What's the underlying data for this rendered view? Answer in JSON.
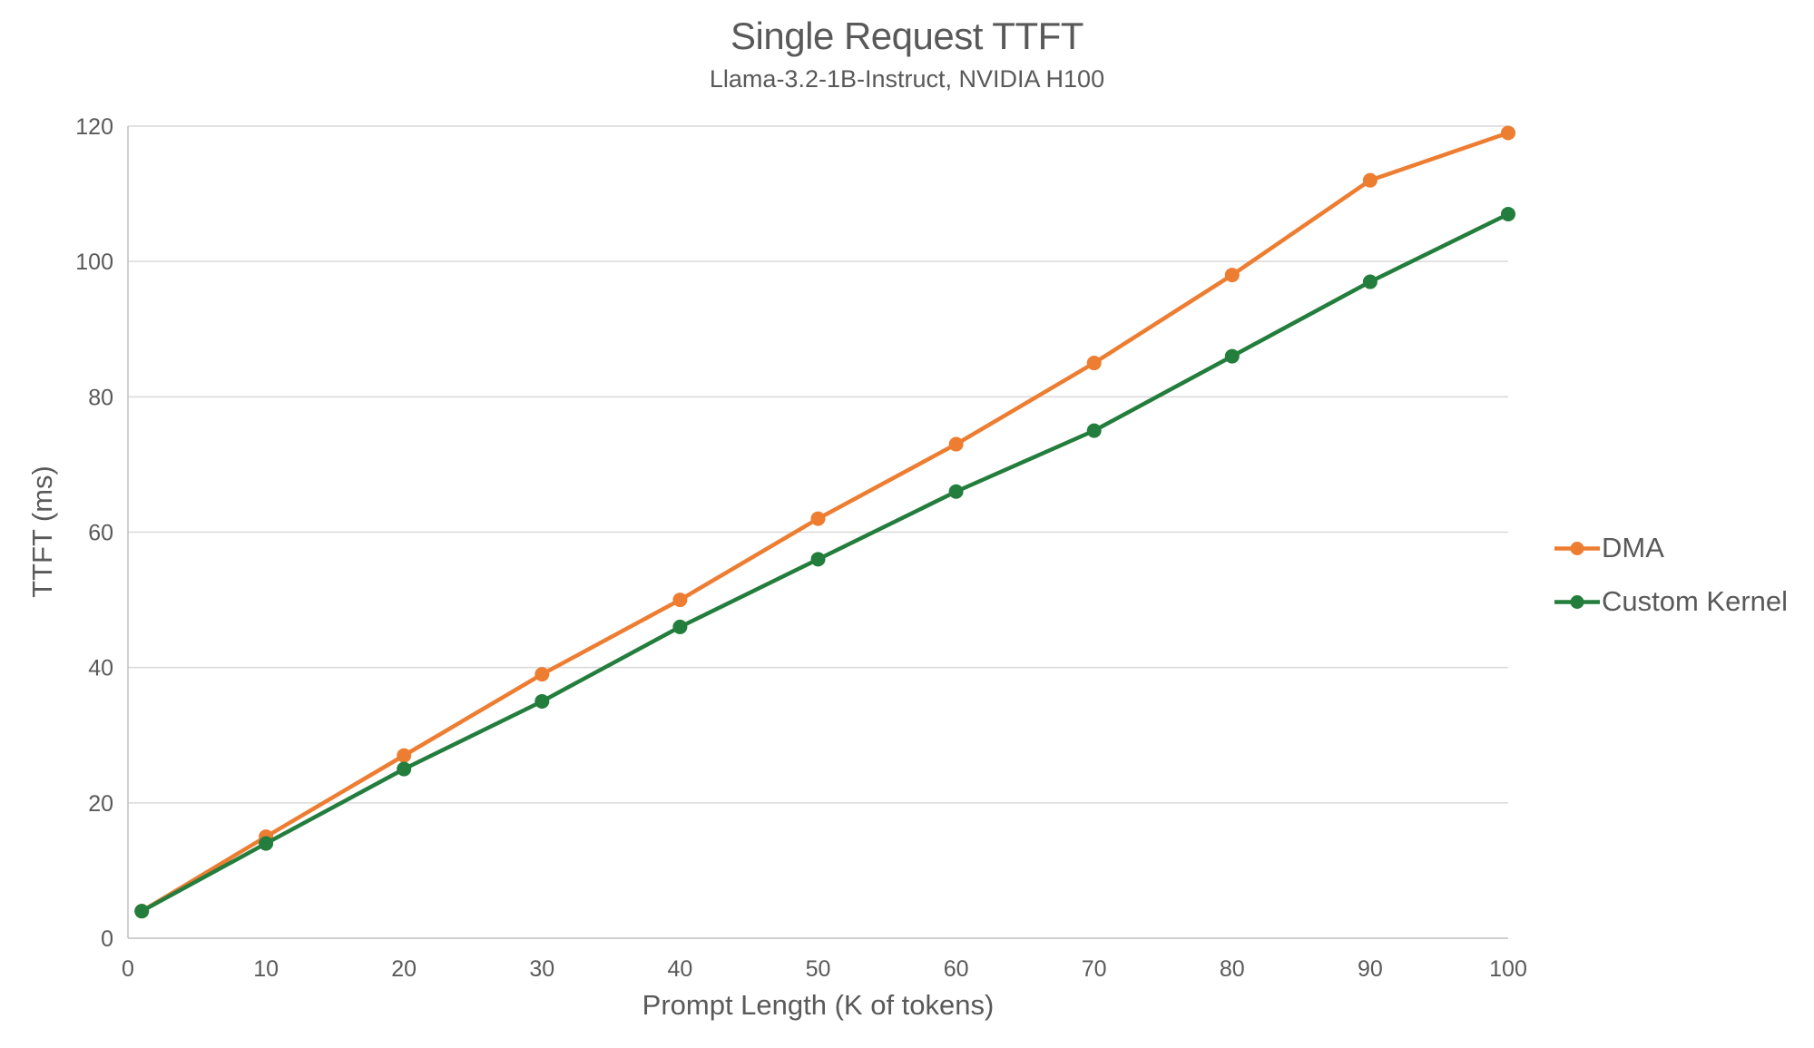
{
  "chart_data": {
    "type": "line",
    "title": "Single Request TTFT",
    "subtitle": "Llama-3.2-1B-Instruct, NVIDIA H100",
    "xlabel": "Prompt Length (K of tokens)",
    "ylabel": "TTFT (ms)",
    "x": [
      1,
      10,
      20,
      30,
      40,
      50,
      60,
      70,
      80,
      90,
      100
    ],
    "series": [
      {
        "name": "DMA",
        "color": "#ED7D31",
        "values": [
          4,
          15,
          27,
          39,
          50,
          62,
          73,
          85,
          98,
          112,
          119
        ]
      },
      {
        "name": "Custom Kernel",
        "color": "#237D3C",
        "values": [
          4,
          14,
          25,
          35,
          46,
          56,
          66,
          75,
          86,
          97,
          107
        ]
      }
    ],
    "xlim": [
      0,
      100
    ],
    "ylim": [
      0,
      120
    ],
    "x_ticks": [
      0,
      10,
      20,
      30,
      40,
      50,
      60,
      70,
      80,
      90,
      100
    ],
    "y_ticks": [
      0,
      20,
      40,
      60,
      80,
      100,
      120
    ],
    "grid": "horizontal",
    "legend_position": "right",
    "colors": {
      "text": "#595959",
      "gridline": "#D9D9D9",
      "axis_line": "#BFBFBF",
      "background": "#FFFFFF"
    }
  }
}
